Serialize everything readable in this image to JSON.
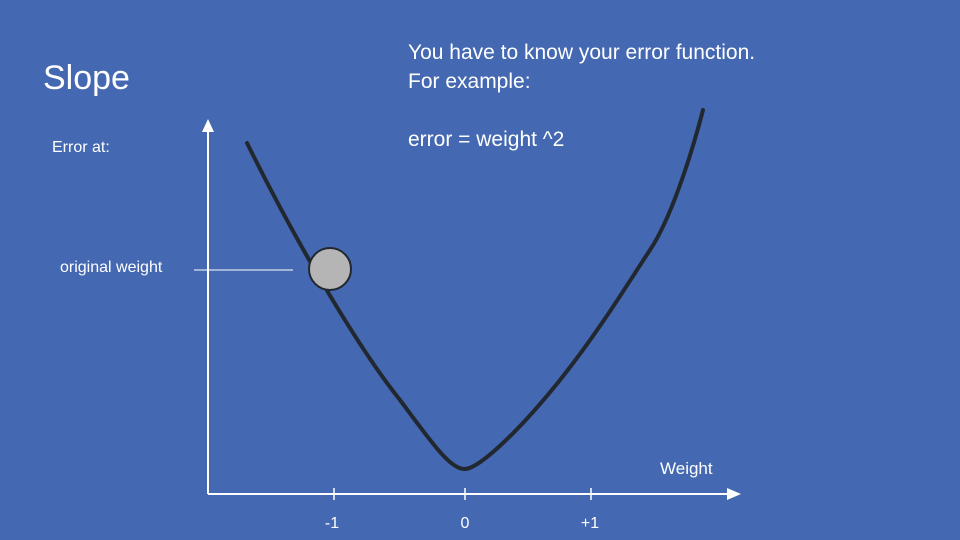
{
  "slide": {
    "title": "Slope",
    "explanation": {
      "line1": "You have to know your error function.",
      "line2": "For example:",
      "formula": "error = weight ^2"
    }
  },
  "graph": {
    "y_axis_label": "Error at:",
    "x_axis_label": "Weight",
    "marker_label": "original weight",
    "x_ticks": [
      "-1",
      "0",
      "+1"
    ],
    "curve_color": "#222830",
    "ball_color": "#b5b5b5",
    "axis_color": "#ffffff"
  }
}
